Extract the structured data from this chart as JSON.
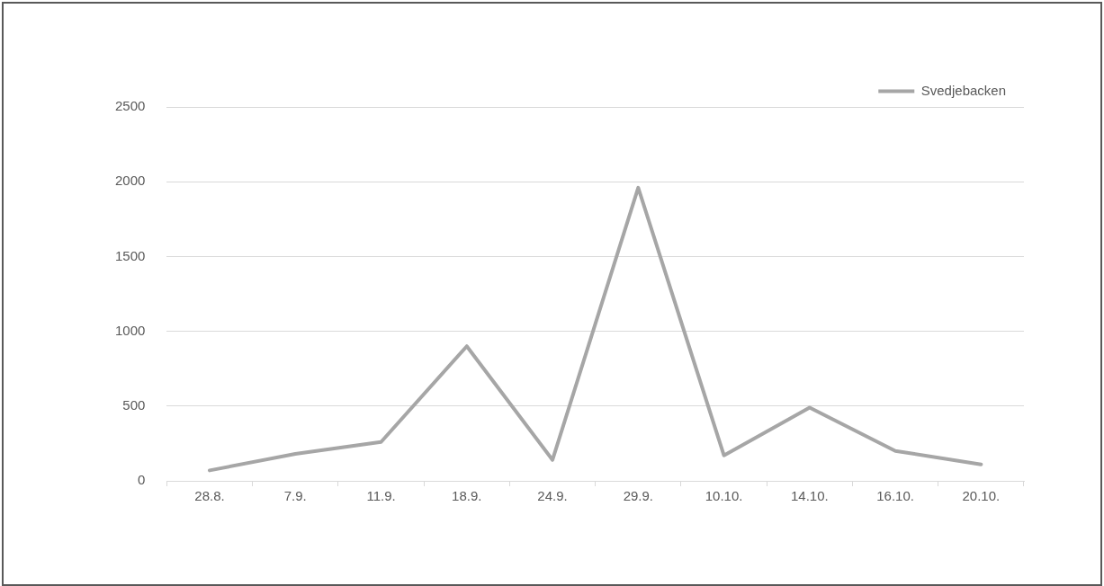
{
  "chart_data": {
    "type": "line",
    "categories": [
      "28.8.",
      "7.9.",
      "11.9.",
      "18.9.",
      "24.9.",
      "29.9.",
      "10.10.",
      "14.10.",
      "16.10.",
      "20.10."
    ],
    "series": [
      {
        "name": "Svedjebacken",
        "color": "#a6a6a6",
        "values": [
          70,
          180,
          260,
          900,
          140,
          1960,
          170,
          490,
          200,
          110
        ]
      }
    ],
    "ylim": [
      0,
      2500
    ],
    "yticks": [
      0,
      500,
      1000,
      1500,
      2000,
      2500
    ],
    "grid": "y",
    "legend": "top right",
    "marker": "none",
    "line_style": "solid"
  }
}
